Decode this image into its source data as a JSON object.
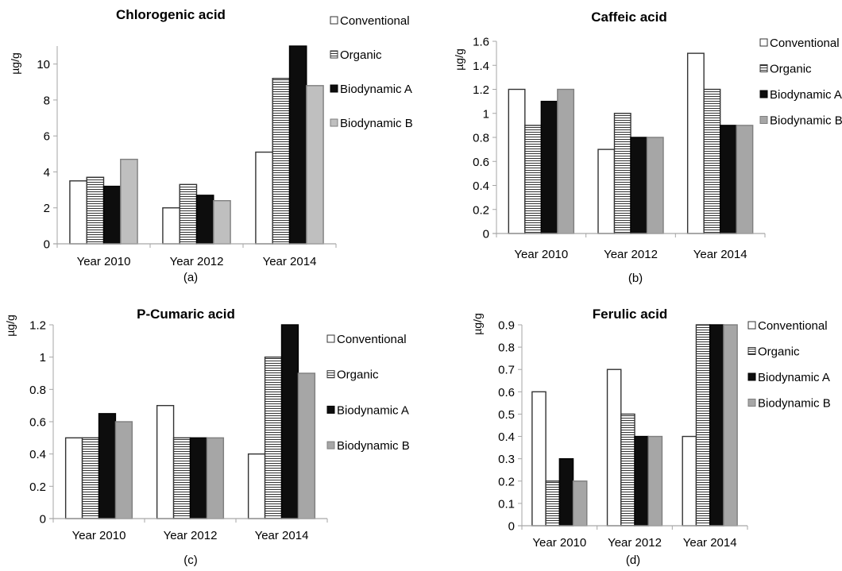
{
  "chart_data": [
    {
      "type": "bar",
      "panel": "(a)",
      "title": "Chlorogenic acid",
      "ylabel": "µg/g",
      "xlabel": "",
      "categories": [
        "Year 2010",
        "Year 2012",
        "Year 2014"
      ],
      "ylim": [
        0,
        11
      ],
      "yticks": [
        0,
        2,
        4,
        6,
        8,
        10
      ],
      "ytick_labels": [
        "0",
        "2",
        "4",
        "6",
        "8",
        "10"
      ],
      "grid": false,
      "legend_position": "right",
      "series": [
        {
          "name": "Conventional",
          "values": [
            3.5,
            2.0,
            5.1
          ]
        },
        {
          "name": "Organic",
          "values": [
            3.7,
            3.3,
            9.2
          ]
        },
        {
          "name": "Biodynamic A",
          "values": [
            3.2,
            2.7,
            11.0
          ]
        },
        {
          "name": "Biodynamic B",
          "values": [
            4.7,
            2.4,
            8.8
          ]
        }
      ]
    },
    {
      "type": "bar",
      "panel": "(b)",
      "title": "Caffeic acid",
      "ylabel": "µg/g",
      "xlabel": "",
      "categories": [
        "Year 2010",
        "Year 2012",
        "Year 2014"
      ],
      "ylim": [
        0,
        1.6
      ],
      "yticks": [
        0,
        0.2,
        0.4,
        0.6,
        0.8,
        1,
        1.2,
        1.4,
        1.6
      ],
      "ytick_labels": [
        "0",
        "0.2",
        "0.4",
        "0.6",
        "0.8",
        "1",
        "1.2",
        "1.4",
        "1.6"
      ],
      "grid": false,
      "legend_position": "right",
      "series": [
        {
          "name": "Conventional",
          "values": [
            1.2,
            0.7,
            1.5
          ]
        },
        {
          "name": "Organic",
          "values": [
            0.9,
            1.0,
            1.2
          ]
        },
        {
          "name": "Biodynamic A",
          "values": [
            1.1,
            0.8,
            0.9
          ]
        },
        {
          "name": "Biodynamic B",
          "values": [
            1.2,
            0.8,
            0.9
          ]
        }
      ]
    },
    {
      "type": "bar",
      "panel": "(c)",
      "title": "P-Cumaric acid",
      "ylabel": "µg/g",
      "xlabel": "",
      "categories": [
        "Year 2010",
        "Year 2012",
        "Year 2014"
      ],
      "ylim": [
        0,
        1.2
      ],
      "yticks": [
        0,
        0.2,
        0.4,
        0.6,
        0.8,
        1,
        1.2
      ],
      "ytick_labels": [
        "0",
        "0.2",
        "0.4",
        "0.6",
        "0.8",
        "1",
        "1.2"
      ],
      "grid": false,
      "legend_position": "right",
      "series": [
        {
          "name": "Conventional",
          "values": [
            0.5,
            0.7,
            0.4
          ]
        },
        {
          "name": "Organic",
          "values": [
            0.5,
            0.5,
            1.0
          ]
        },
        {
          "name": "Biodynamic A",
          "values": [
            0.65,
            0.5,
            1.2
          ]
        },
        {
          "name": "Biodynamic B",
          "values": [
            0.6,
            0.5,
            0.9
          ]
        }
      ]
    },
    {
      "type": "bar",
      "panel": "(d)",
      "title": "Ferulic acid",
      "ylabel": "µg/g",
      "xlabel": "",
      "categories": [
        "Year 2010",
        "Year 2012",
        "Year 2014"
      ],
      "ylim": [
        0,
        0.9
      ],
      "yticks": [
        0,
        0.1,
        0.2,
        0.3,
        0.4,
        0.5,
        0.6,
        0.7,
        0.8,
        0.9
      ],
      "ytick_labels": [
        "0",
        "0.1",
        "0.2",
        "0.3",
        "0.4",
        "0.5",
        "0.6",
        "0.7",
        "0.8",
        "0.9"
      ],
      "grid": false,
      "legend_position": "right",
      "series": [
        {
          "name": "Conventional",
          "values": [
            0.6,
            0.7,
            0.4
          ]
        },
        {
          "name": "Organic",
          "values": [
            0.2,
            0.5,
            0.9
          ]
        },
        {
          "name": "Biodynamic A",
          "values": [
            0.3,
            0.4,
            0.9
          ]
        },
        {
          "name": "Biodynamic B",
          "values": [
            0.2,
            0.4,
            0.9
          ]
        }
      ]
    }
  ],
  "series_styles": [
    {
      "name": "Conventional",
      "fill": "#ffffff",
      "pattern": "none"
    },
    {
      "name": "Organic",
      "fill": "#ffffff",
      "pattern": "horizontal-lines"
    },
    {
      "name": "Biodynamic A",
      "fill": "#0d0d0d",
      "pattern": "none"
    },
    {
      "name": "Biodynamic B",
      "fill": "#bfbfbf",
      "pattern": "none"
    }
  ],
  "colors": {
    "axis": "#a6a6a6",
    "bar_outline": "#333333",
    "hatch_line": "#333333",
    "biodynamic_b_light": "#bfbfbf",
    "biodynamic_b_dark": "#a6a6a6"
  }
}
